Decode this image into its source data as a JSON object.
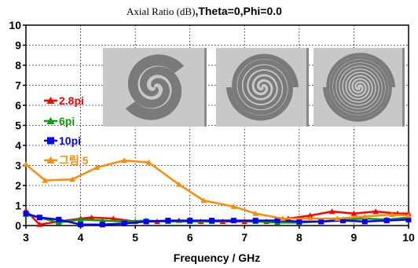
{
  "chart_data": {
    "type": "line",
    "title_prefix": "Axial Ratio (dB)",
    "title_suffix": ",Theta=0,Phi=0.0",
    "xlabel": "Frequency / GHz",
    "ylabel": "",
    "xlim": [
      3,
      10
    ],
    "ylim": [
      0,
      10
    ],
    "x_ticks": [
      "3",
      "4",
      "5",
      "6",
      "7",
      "8",
      "9",
      "10"
    ],
    "y_ticks": [
      "0",
      "1",
      "2",
      "3",
      "4",
      "5",
      "6",
      "7",
      "8",
      "9",
      "10"
    ],
    "grid": true,
    "legend_position": "left",
    "series": [
      {
        "name": "2.8pi",
        "color": "#ff0000",
        "marker": "triangle",
        "x": [
          3.0,
          3.25,
          3.6,
          4.0,
          4.2,
          4.6,
          5.0,
          5.4,
          5.8,
          6.2,
          6.6,
          7.0,
          7.4,
          7.8,
          8.2,
          8.6,
          9.0,
          9.4,
          9.8,
          10.0
        ],
        "y": [
          0.75,
          0.05,
          0.2,
          0.35,
          0.4,
          0.35,
          0.2,
          0.2,
          0.25,
          0.2,
          0.2,
          0.2,
          0.2,
          0.35,
          0.5,
          0.7,
          0.6,
          0.7,
          0.6,
          0.6
        ]
      },
      {
        "name": "6pi",
        "color": "#00a000",
        "marker": "triangle",
        "x": [
          3.0,
          3.25,
          3.6,
          4.0,
          4.4,
          4.8,
          5.2,
          5.6,
          6.0,
          6.4,
          6.8,
          7.2,
          7.6,
          8.0,
          8.4,
          8.8,
          9.2,
          9.6,
          10.0
        ],
        "y": [
          0.55,
          0.4,
          0.15,
          0.3,
          0.25,
          0.2,
          0.25,
          0.2,
          0.2,
          0.2,
          0.25,
          0.2,
          0.15,
          0.15,
          0.2,
          0.3,
          0.35,
          0.3,
          0.4
        ]
      },
      {
        "name": "10pi",
        "color": "#0000ff",
        "marker": "square",
        "x": [
          3.0,
          3.25,
          3.6,
          4.0,
          4.4,
          4.8,
          5.2,
          5.6,
          6.0,
          6.4,
          6.8,
          7.2,
          7.6,
          8.0,
          8.4,
          8.8,
          9.2,
          9.6,
          10.0
        ],
        "y": [
          0.6,
          0.4,
          0.3,
          0.05,
          0.05,
          0.1,
          0.2,
          0.25,
          0.25,
          0.25,
          0.25,
          0.25,
          0.25,
          0.2,
          0.2,
          0.25,
          0.2,
          0.25,
          0.3
        ]
      },
      {
        "name": "그림 5",
        "color": "#ff8c00",
        "marker": "triangle",
        "x": [
          3.0,
          3.35,
          3.85,
          4.3,
          4.8,
          5.25,
          5.8,
          6.25,
          6.8,
          7.2,
          7.7,
          8.2,
          8.7,
          9.2,
          9.7,
          10.0
        ],
        "y": [
          3.05,
          2.25,
          2.3,
          2.9,
          3.25,
          3.15,
          2.05,
          1.25,
          0.95,
          0.6,
          0.35,
          0.35,
          0.35,
          0.45,
          0.55,
          0.5
        ]
      }
    ]
  },
  "insets": [
    {
      "name": "spiral-2.8pi",
      "turns": 1.4
    },
    {
      "name": "spiral-6pi",
      "turns": 3.0
    },
    {
      "name": "spiral-10pi",
      "turns": 5.0
    }
  ]
}
